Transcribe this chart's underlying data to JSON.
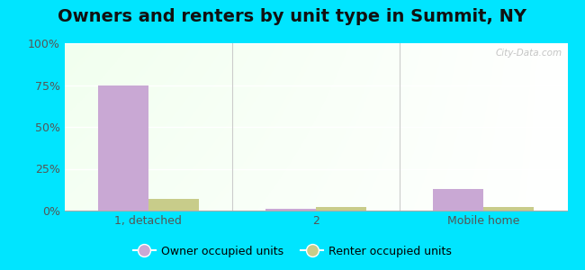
{
  "title": "Owners and renters by unit type in Summit, NY",
  "categories": [
    "1, detached",
    "2",
    "Mobile home"
  ],
  "owner_values": [
    75,
    1,
    13
  ],
  "renter_values": [
    7,
    2,
    2
  ],
  "owner_color": "#c9a8d4",
  "renter_color": "#c8cc8a",
  "ylim": [
    0,
    100
  ],
  "yticks": [
    0,
    25,
    50,
    75,
    100
  ],
  "ytick_labels": [
    "0%",
    "25%",
    "50%",
    "75%",
    "100%"
  ],
  "outer_bg": "#00e5ff",
  "bar_width": 0.3,
  "title_fontsize": 14,
  "legend_label_owner": "Owner occupied units",
  "legend_label_renter": "Renter occupied units",
  "watermark": "City-Data.com"
}
